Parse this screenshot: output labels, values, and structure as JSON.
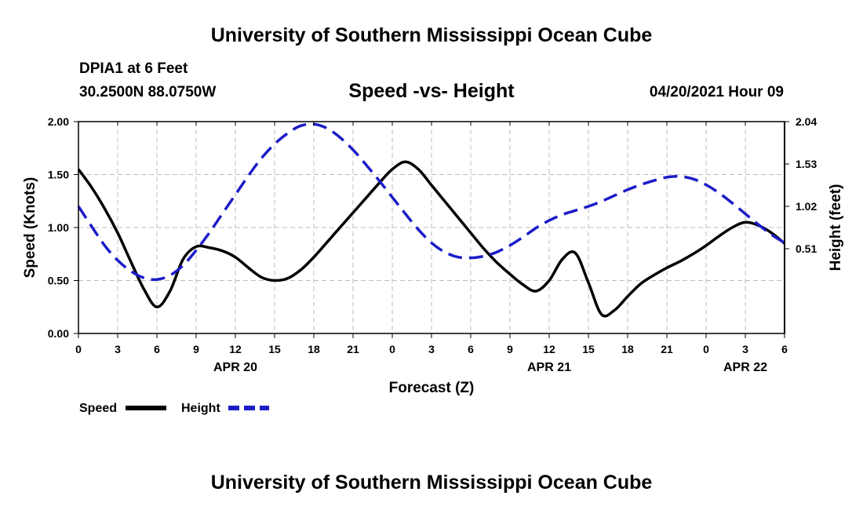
{
  "header": {
    "title": "University of Southern Mississippi Ocean Cube",
    "station": "DPIA1 at 6 Feet",
    "coords": "30.2500N  88.0750W",
    "datetime": "04/20/2021 Hour 09"
  },
  "footer": {
    "title": "University of Southern Mississippi Ocean Cube"
  },
  "chart_data": {
    "type": "line",
    "title": "Speed -vs- Height",
    "xlabel": "Forecast (Z)",
    "ylabel_left": "Speed (Knots)",
    "ylabel_right": "Height (feet)",
    "x_unit": "hours since Apr 20 00Z",
    "xlim": [
      0,
      54
    ],
    "ylim_left": [
      0,
      2.0
    ],
    "ylim_right": [
      -0.51,
      2.04
    ],
    "x_ticks": [
      0,
      3,
      6,
      9,
      12,
      15,
      18,
      21,
      24,
      27,
      30,
      33,
      36,
      39,
      42,
      45,
      48,
      51,
      54
    ],
    "x_tick_labels": [
      "0",
      "3",
      "6",
      "9",
      "12",
      "15",
      "18",
      "21",
      "0",
      "3",
      "6",
      "9",
      "12",
      "15",
      "18",
      "21",
      "0",
      "3",
      "6"
    ],
    "date_labels": [
      {
        "x": 12,
        "label": "APR 20"
      },
      {
        "x": 36,
        "label": "APR 21"
      },
      {
        "x": 51,
        "label": "APR 22"
      }
    ],
    "left_ticks": [
      0.0,
      0.5,
      1.0,
      1.5,
      2.0
    ],
    "left_tick_labels": [
      "0.00",
      "0.50",
      "1.00",
      "1.50",
      "2.00"
    ],
    "right_ticks": [
      0.51,
      1.02,
      1.53,
      2.04
    ],
    "right_tick_labels": [
      "0.51",
      "1.02",
      "1.53",
      "2.04"
    ],
    "grid": true,
    "series": [
      {
        "name": "Speed",
        "axis": "left",
        "color": "#000000",
        "dash": "solid",
        "x": [
          0,
          1,
          2,
          3,
          4,
          5,
          6,
          7,
          8,
          9,
          10,
          11,
          12,
          13,
          14,
          15,
          16,
          17,
          18,
          19,
          20,
          21,
          22,
          23,
          24,
          25,
          26,
          27,
          28,
          29,
          30,
          31,
          32,
          33,
          34,
          35,
          36,
          37,
          38,
          39,
          40,
          41,
          42,
          43,
          44,
          45,
          46,
          47,
          48,
          49,
          50,
          51,
          52,
          53,
          54
        ],
        "values": [
          1.55,
          1.38,
          1.18,
          0.95,
          0.68,
          0.42,
          0.25,
          0.4,
          0.7,
          0.82,
          0.81,
          0.78,
          0.72,
          0.62,
          0.53,
          0.5,
          0.52,
          0.6,
          0.72,
          0.86,
          1.0,
          1.14,
          1.28,
          1.42,
          1.55,
          1.62,
          1.55,
          1.4,
          1.25,
          1.1,
          0.95,
          0.8,
          0.67,
          0.56,
          0.46,
          0.4,
          0.5,
          0.7,
          0.76,
          0.48,
          0.18,
          0.22,
          0.35,
          0.47,
          0.55,
          0.62,
          0.68,
          0.75,
          0.83,
          0.92,
          1.0,
          1.05,
          1.02,
          0.95,
          0.85
        ]
      },
      {
        "name": "Height",
        "axis": "right",
        "color": "#1c1cc8",
        "dash": "dashed",
        "x": [
          0,
          1,
          2,
          3,
          4,
          5,
          6,
          7,
          8,
          9,
          10,
          11,
          12,
          13,
          14,
          15,
          16,
          17,
          18,
          19,
          20,
          21,
          22,
          23,
          24,
          25,
          26,
          27,
          28,
          29,
          30,
          31,
          32,
          33,
          34,
          35,
          36,
          37,
          38,
          39,
          40,
          41,
          42,
          43,
          44,
          45,
          46,
          47,
          48,
          49,
          50,
          51,
          52,
          53,
          54
        ],
        "values": [
          1.02,
          0.78,
          0.55,
          0.37,
          0.24,
          0.16,
          0.14,
          0.19,
          0.31,
          0.49,
          0.7,
          0.93,
          1.16,
          1.39,
          1.6,
          1.77,
          1.9,
          1.99,
          2.01,
          1.96,
          1.85,
          1.7,
          1.52,
          1.33,
          1.13,
          0.93,
          0.74,
          0.58,
          0.47,
          0.41,
          0.4,
          0.42,
          0.47,
          0.55,
          0.65,
          0.76,
          0.85,
          0.92,
          0.97,
          1.02,
          1.08,
          1.15,
          1.22,
          1.28,
          1.33,
          1.37,
          1.38,
          1.35,
          1.28,
          1.18,
          1.06,
          0.93,
          0.8,
          0.68,
          0.58
        ]
      }
    ],
    "legend": [
      {
        "label": "Speed",
        "color": "#000000",
        "dash": "solid"
      },
      {
        "label": "Height",
        "color": "#1c1cc8",
        "dash": "dashed"
      }
    ]
  }
}
